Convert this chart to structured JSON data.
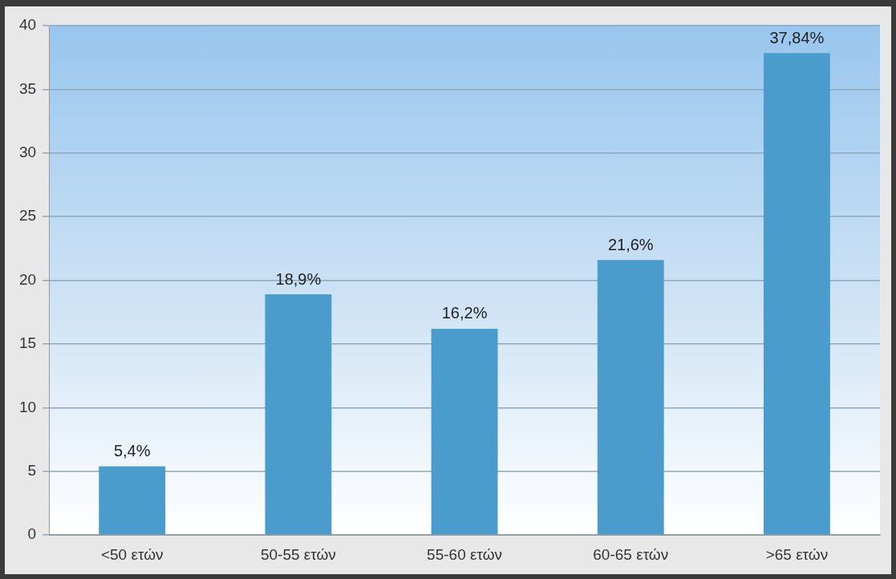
{
  "chart_data": {
    "type": "bar",
    "categories": [
      "<50 ετών",
      "50-55 ετών",
      "55-60 ετών",
      "60-65 ετών",
      ">65 ετών"
    ],
    "values": [
      5.4,
      18.9,
      16.2,
      21.6,
      37.84
    ],
    "value_labels": [
      "5,4%",
      "18,9%",
      "16,2%",
      "21,6%",
      "37,84%"
    ],
    "color": "#4a9ccc",
    "ylim": [
      0,
      40
    ],
    "yticks": [
      0,
      5,
      10,
      15,
      20,
      25,
      30,
      35,
      40
    ],
    "grid": "y"
  }
}
